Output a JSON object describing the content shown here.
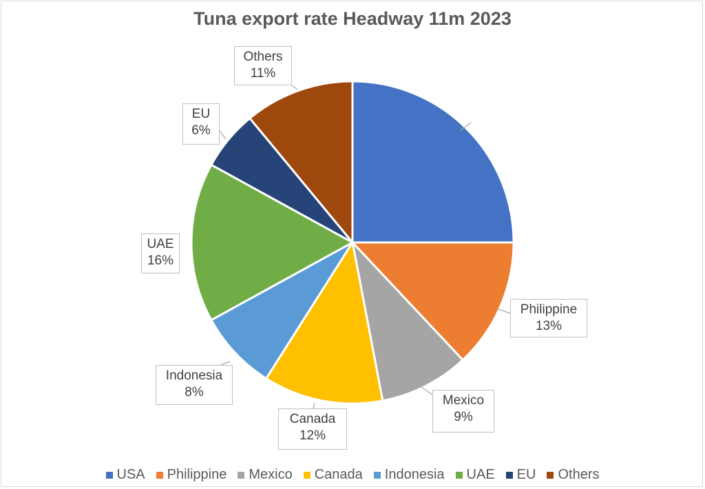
{
  "chart_data": {
    "type": "pie",
    "title": "Tuna export rate Headway 11m 2023",
    "legend_position": "bottom",
    "slices": [
      {
        "name": "USA",
        "value": 25,
        "label": "25%",
        "color": "#4472C4"
      },
      {
        "name": "Philippine",
        "value": 13,
        "label": "13%",
        "color": "#ED7D31"
      },
      {
        "name": "Mexico",
        "value": 9,
        "label": "9%",
        "color": "#A5A5A5"
      },
      {
        "name": "Canada",
        "value": 12,
        "label": "12%",
        "color": "#FFC000"
      },
      {
        "name": "Indonesia",
        "value": 8,
        "label": "8%",
        "color": "#5B9BD5"
      },
      {
        "name": "UAE",
        "value": 16,
        "label": "16%",
        "color": "#70AD47"
      },
      {
        "name": "EU",
        "value": 6,
        "label": "6%",
        "color": "#264478"
      },
      {
        "name": "Others",
        "value": 11,
        "label": "11%",
        "color": "#9E480E"
      }
    ]
  }
}
